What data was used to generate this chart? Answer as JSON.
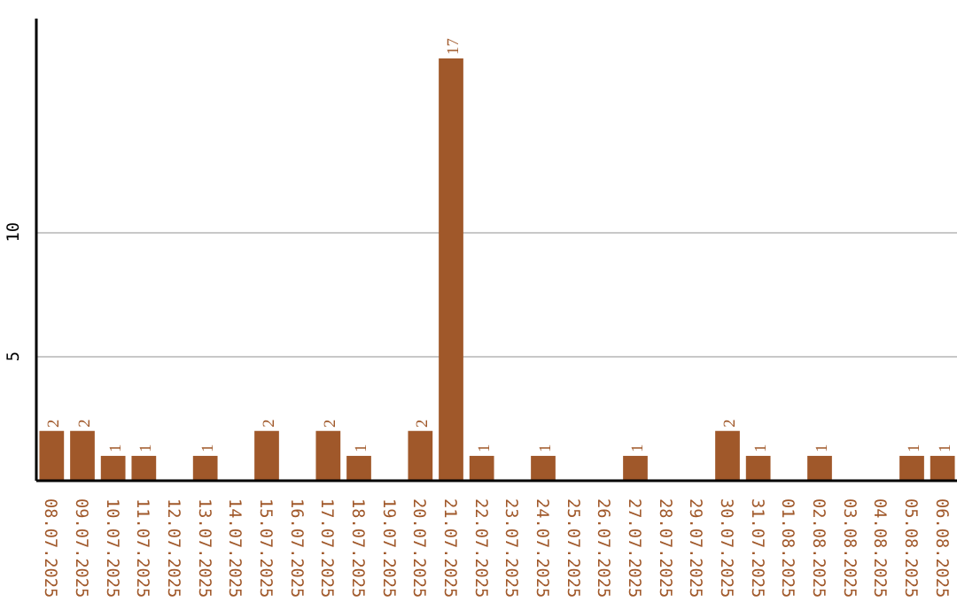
{
  "chart_data": {
    "type": "bar",
    "categories": [
      "08.07.2025",
      "09.07.2025",
      "10.07.2025",
      "11.07.2025",
      "12.07.2025",
      "13.07.2025",
      "14.07.2025",
      "15.07.2025",
      "16.07.2025",
      "17.07.2025",
      "18.07.2025",
      "19.07.2025",
      "20.07.2025",
      "21.07.2025",
      "22.07.2025",
      "23.07.2025",
      "24.07.2025",
      "25.07.2025",
      "26.07.2025",
      "27.07.2025",
      "28.07.2025",
      "29.07.2025",
      "30.07.2025",
      "31.07.2025",
      "01.08.2025",
      "02.08.2025",
      "03.08.2025",
      "04.08.2025",
      "05.08.2025",
      "06.08.2025"
    ],
    "values": [
      2,
      2,
      1,
      1,
      0,
      1,
      0,
      2,
      0,
      2,
      1,
      0,
      2,
      17,
      1,
      0,
      1,
      0,
      0,
      1,
      0,
      0,
      2,
      1,
      0,
      1,
      0,
      0,
      1,
      1
    ],
    "value_labels": [
      "2",
      "2",
      "1",
      "1",
      null,
      "1",
      null,
      "2",
      null,
      "2",
      "1",
      null,
      "2",
      "17",
      "1",
      null,
      "1",
      null,
      null,
      "1",
      null,
      null,
      "2",
      "1",
      null,
      "1",
      null,
      null,
      "1",
      "1"
    ],
    "color": "#a0582a",
    "ylim": [
      0,
      18.6
    ],
    "yticks": [
      5,
      10
    ],
    "grid": "y"
  }
}
